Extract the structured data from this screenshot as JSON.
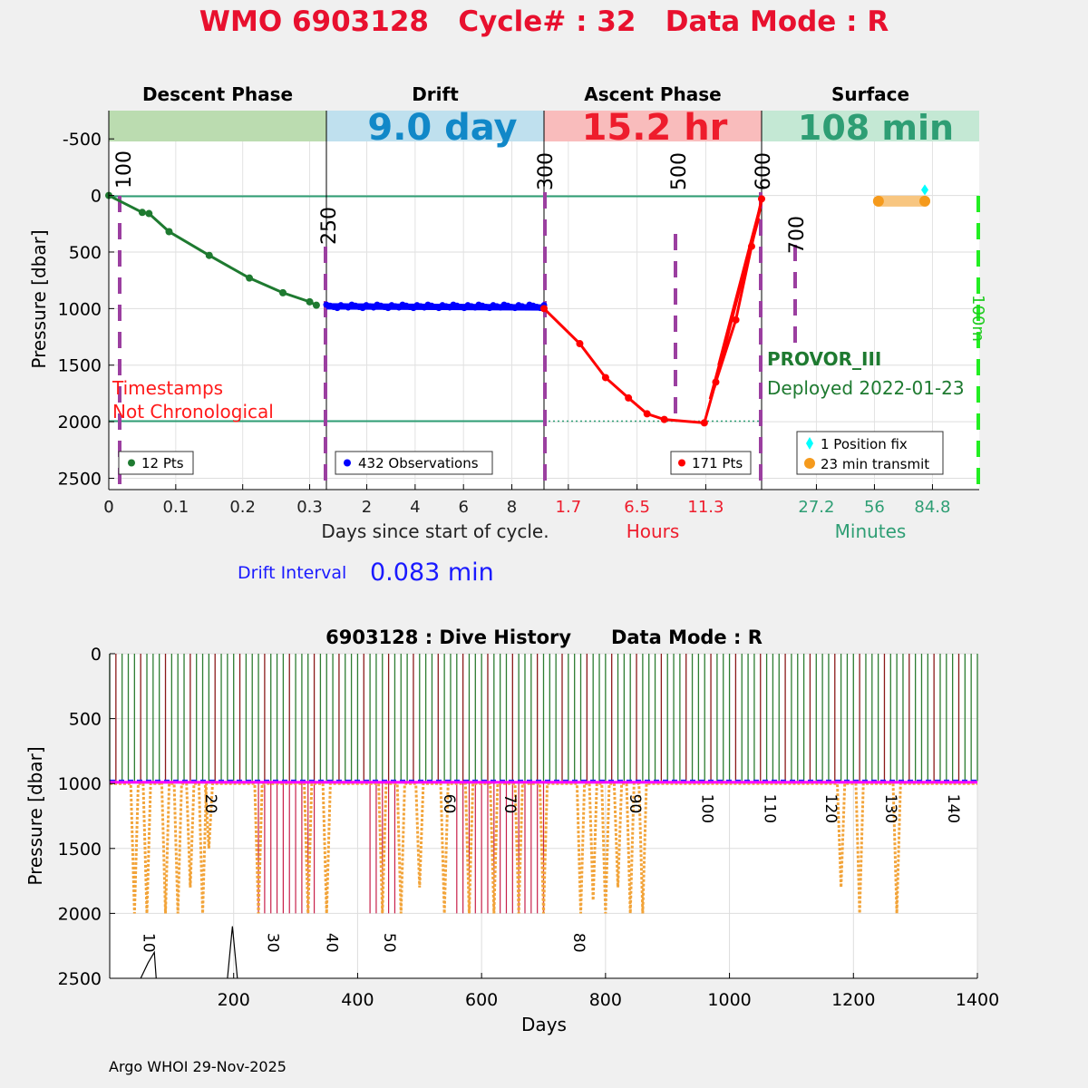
{
  "header": {
    "title": "WMO 6903128   Cycle# : 32   Data Mode : R",
    "title_color": "#e8102e"
  },
  "top_chart": {
    "ylabel": "Pressure [dbar]",
    "y_ticks": [
      "-500",
      "0",
      "500",
      "1000",
      "1500",
      "2000",
      "2500"
    ],
    "y_tick_values": [
      -500,
      0,
      500,
      1000,
      1500,
      2000,
      2500
    ],
    "ylim": [
      -750,
      2600
    ],
    "phases": [
      {
        "name": "Descent Phase",
        "value": "",
        "color": "#bbdcb0",
        "text_color": "#000000"
      },
      {
        "name": "Drift",
        "value": "9.0 day",
        "color": "#bfe0ee",
        "text_color": "#1188c8"
      },
      {
        "name": "Ascent Phase",
        "value": "15.2 hr",
        "color": "#f9bcbc",
        "text_color": "#ee1c2c"
      },
      {
        "name": "Surface",
        "value": "108 min",
        "color": "#c4e8d4",
        "text_color": "#2e9e74"
      }
    ],
    "panel1_xticks": [
      "0",
      "0.1",
      "0.2",
      "0.3"
    ],
    "panel1_xtick_values": [
      0,
      0.1,
      0.2,
      0.3
    ],
    "panel1_xlim": [
      0,
      0.325
    ],
    "panel2_xticks": [
      "2",
      "4",
      "6",
      "8"
    ],
    "panel2_xtick_values": [
      2,
      4,
      6,
      8
    ],
    "panel2_xlim": [
      0.33,
      9.33
    ],
    "panel3_xticks": [
      "1.7",
      "6.5",
      "11.3"
    ],
    "panel3_xtick_values": [
      1.7,
      6.5,
      11.3
    ],
    "panel3_xlim": [
      0,
      15.2
    ],
    "panel4_xticks": [
      "27.2",
      "56",
      "84.8"
    ],
    "panel4_xtick_values": [
      27.2,
      56,
      84.8
    ],
    "panel4_xlim": [
      0,
      108
    ],
    "xlabel_days": "Days since start of cycle.",
    "xlabel_hours": "Hours",
    "xlabel_minutes": "Minutes",
    "hours_color": "#ee1c2c",
    "minutes_color": "#2e9e74",
    "markers": [
      "100",
      "250",
      "300",
      "500",
      "600",
      "700",
      "100m"
    ],
    "warning_line1": "Timestamps",
    "warning_line2": "Not Chronological",
    "float_type": "PROVOR_III",
    "deployed": "Deployed 2022-01-23",
    "legend_descent": "12 Pts",
    "legend_drift": "432 Observations",
    "legend_ascent": "171 Pts",
    "legend_position": "1 Position fix",
    "legend_transmit": "23 min transmit",
    "drift_interval_label": "Drift Interval",
    "drift_interval_value": "0.083 min"
  },
  "chart_data": [
    {
      "type": "line",
      "title": "WMO 6903128 Cycle# : 32 Data Mode : R",
      "ylabel": "Pressure [dbar]",
      "series": [
        {
          "name": "Descent (days)",
          "color": "#1e7a30",
          "x": [
            0,
            0.05,
            0.06,
            0.09,
            0.15,
            0.21,
            0.26,
            0.3,
            0.31
          ],
          "y": [
            0,
            150,
            160,
            320,
            530,
            730,
            860,
            940,
            970
          ]
        },
        {
          "name": "Drift (days)",
          "color": "#0000ff",
          "x": [
            0.33,
            9.33
          ],
          "y": [
            980,
            990
          ]
        },
        {
          "name": "Ascent (hours)",
          "color": "#ff0000",
          "x": [
            0,
            2.5,
            4.3,
            5.9,
            7.2,
            8.4,
            11.2,
            12.0,
            13.4,
            14.5,
            15.2
          ],
          "y": [
            1000,
            1310,
            1610,
            1790,
            1930,
            1980,
            2010,
            1650,
            1100,
            450,
            30
          ]
        },
        {
          "name": "Position fix (min)",
          "color": "#00ffff",
          "x": [
            81
          ],
          "y": [
            -50
          ]
        },
        {
          "name": "Transmit (min)",
          "color": "#f59a1c",
          "x": [
            58,
            81
          ],
          "y": [
            50,
            50
          ]
        }
      ]
    },
    {
      "type": "line",
      "title": "6903128 : Dive History      Data Mode : R",
      "xlabel": "Days",
      "ylabel": "Pressure [dbar]",
      "xlim": [
        0,
        1400
      ],
      "ylim": [
        0,
        2500
      ],
      "series": [
        {
          "name": "Max profile pressure",
          "color": "#f2a43a",
          "x": [
            20,
            40,
            60,
            80,
            90,
            110,
            130,
            150,
            160,
            240,
            320,
            350,
            440,
            470,
            500,
            540,
            580,
            620,
            660,
            700,
            760,
            780,
            800,
            820,
            840,
            860,
            1180,
            1210,
            1270
          ],
          "y": [
            1000,
            2000,
            2000,
            1000,
            2000,
            2000,
            1800,
            2000,
            1500,
            2000,
            2000,
            2000,
            2000,
            2000,
            1800,
            2000,
            2000,
            2000,
            2000,
            2000,
            2000,
            1900,
            2000,
            1800,
            2000,
            2000,
            1800,
            2000,
            2000
          ]
        },
        {
          "name": "Drift pressure",
          "color": "#ff00ff",
          "x": [
            0,
            1400
          ],
          "y": [
            990,
            990
          ]
        }
      ]
    }
  ],
  "bottom_chart": {
    "title": "6903128 : Dive History      Data Mode : R",
    "ylabel": "Pressure [dbar]",
    "xlabel": "Days",
    "y_ticks": [
      "0",
      "500",
      "1000",
      "1500",
      "2000",
      "2500"
    ],
    "y_tick_values": [
      0,
      500,
      1000,
      1500,
      2000,
      2500
    ],
    "x_ticks": [
      "200",
      "400",
      "600",
      "800",
      "1000",
      "1200",
      "1400"
    ],
    "x_tick_values": [
      200,
      400,
      600,
      800,
      1000,
      1200,
      1400
    ],
    "cycle_labels_low": [
      {
        "label": "10",
        "day": 55
      },
      {
        "label": "30",
        "day": 255
      },
      {
        "label": "40",
        "day": 350
      },
      {
        "label": "50",
        "day": 443
      },
      {
        "label": "80",
        "day": 749
      }
    ],
    "cycle_labels_high": [
      {
        "label": "20",
        "day": 155
      },
      {
        "label": "60",
        "day": 540
      },
      {
        "label": "70",
        "day": 638
      },
      {
        "label": "90",
        "day": 840
      },
      {
        "label": "100",
        "day": 956
      },
      {
        "label": "110",
        "day": 1057
      },
      {
        "label": "120",
        "day": 1156
      },
      {
        "label": "130",
        "day": 1252
      },
      {
        "label": "140",
        "day": 1353
      }
    ]
  },
  "footer": {
    "credit": "Argo WHOI 29-Nov-2025"
  }
}
